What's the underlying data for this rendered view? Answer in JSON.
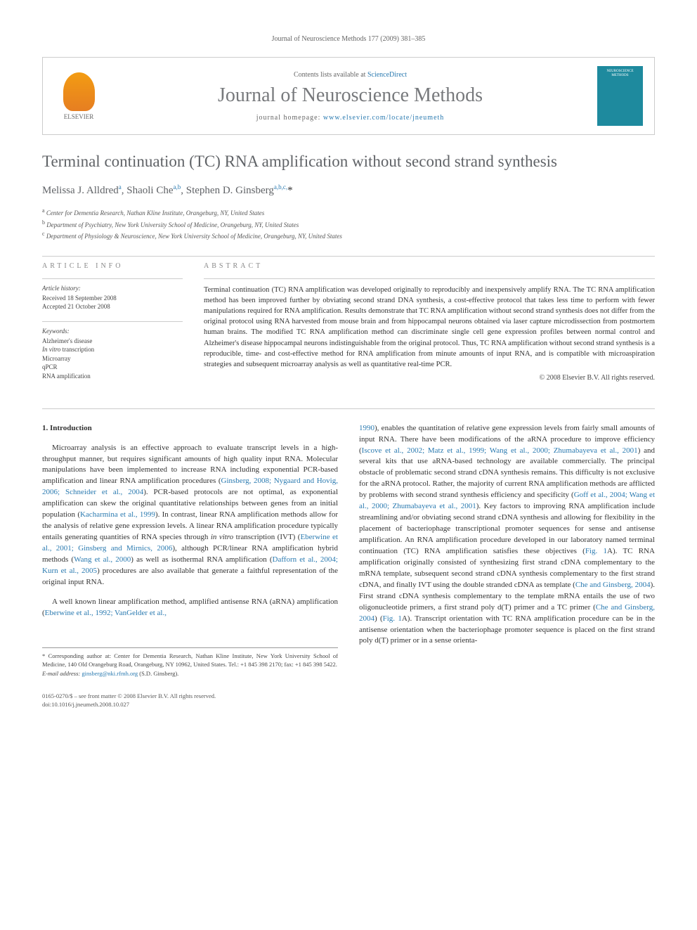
{
  "running_header": "Journal of Neuroscience Methods 177 (2009) 381–385",
  "masthead": {
    "publisher_name": "ELSEVIER",
    "contents_prefix": "Contents lists available at ",
    "contents_link": "ScienceDirect",
    "journal_name": "Journal of Neuroscience Methods",
    "homepage_prefix": "journal homepage: ",
    "homepage_url": "www.elsevier.com/locate/jneumeth",
    "cover_title1": "NEUROSCIENCE",
    "cover_title2": "METHODS"
  },
  "article": {
    "title": "Terminal continuation (TC) RNA amplification without second strand synthesis",
    "authors_html": "Melissa J. Alldred<sup>a</sup>, Shaoli Che<sup>a,b</sup>, Stephen D. Ginsberg<sup>a,b,c,</sup><span class='ast'>*</span>",
    "affiliations": [
      "Center for Dementia Research, Nathan Kline Institute, Orangeburg, NY, United States",
      "Department of Psychiatry, New York University School of Medicine, Orangeburg, NY, United States",
      "Department of Physiology & Neuroscience, New York University School of Medicine, Orangeburg, NY, United States"
    ],
    "aff_markers": [
      "a",
      "b",
      "c"
    ]
  },
  "info": {
    "label": "ARTICLE INFO",
    "history_label": "Article history:",
    "received": "Received 18 September 2008",
    "accepted": "Accepted 21 October 2008",
    "keywords_label": "Keywords:",
    "keywords": [
      "Alzheimer's disease",
      "In vitro transcription",
      "Microarray",
      "qPCR",
      "RNA amplification"
    ]
  },
  "abstract": {
    "label": "ABSTRACT",
    "text": "Terminal continuation (TC) RNA amplification was developed originally to reproducibly and inexpensively amplify RNA. The TC RNA amplification method has been improved further by obviating second strand DNA synthesis, a cost-effective protocol that takes less time to perform with fewer manipulations required for RNA amplification. Results demonstrate that TC RNA amplification without second strand synthesis does not differ from the original protocol using RNA harvested from mouse brain and from hippocampal neurons obtained via laser capture microdissection from postmortem human brains. The modified TC RNA amplification method can discriminate single cell gene expression profiles between normal control and Alzheimer's disease hippocampal neurons indistinguishable from the original protocol. Thus, TC RNA amplification without second strand synthesis is a reproducible, time- and cost-effective method for RNA amplification from minute amounts of input RNA, and is compatible with microaspiration strategies and subsequent microarray analysis as well as quantitative real-time PCR.",
    "copyright": "© 2008 Elsevier B.V. All rights reserved."
  },
  "body": {
    "heading": "1. Introduction",
    "left_paragraphs": [
      "Microarray analysis is an effective approach to evaluate transcript levels in a high-throughput manner, but requires significant amounts of high quality input RNA. Molecular manipulations have been implemented to increase RNA including exponential PCR-based amplification and linear RNA amplification procedures (<span class='ref-link'>Ginsberg, 2008; Nygaard and Hovig, 2006; Schneider et al., 2004</span>). PCR-based protocols are not optimal, as exponential amplification can skew the original quantitative relationships between genes from an initial population (<span class='ref-link'>Kacharmina et al., 1999</span>). In contrast, linear RNA amplification methods allow for the analysis of relative gene expression levels. A linear RNA amplification procedure typically entails generating quantities of RNA species through <i>in vitro</i> transcription (IVT) (<span class='ref-link'>Eberwine et al., 2001; Ginsberg and Mirnics, 2006</span>), although PCR/linear RNA amplification hybrid methods (<span class='ref-link'>Wang et al., 2000</span>) as well as isothermal RNA amplification (<span class='ref-link'>Dafforn et al., 2004; Kurn et al., 2005</span>) procedures are also available that generate a faithful representation of the original input RNA.",
      "A well known linear amplification method, amplified antisense RNA (aRNA) amplification (<span class='ref-link'>Eberwine et al., 1992; VanGelder et al.,</span>"
    ],
    "right_paragraph": "<span class='ref-link'>1990</span>), enables the quantitation of relative gene expression levels from fairly small amounts of input RNA. There have been modifications of the aRNA procedure to improve efficiency (<span class='ref-link'>Iscove et al., 2002; Matz et al., 1999; Wang et al., 2000; Zhumabayeva et al., 2001</span>) and several kits that use aRNA-based technology are available commercially. The principal obstacle of problematic second strand cDNA synthesis remains. This difficulty is not exclusive for the aRNA protocol. Rather, the majority of current RNA amplification methods are afflicted by problems with second strand synthesis efficiency and specificity (<span class='ref-link'>Goff et al., 2004; Wang et al., 2000; Zhumabayeva et al., 2001</span>). Key factors to improving RNA amplification include streamlining and/or obviating second strand cDNA synthesis and allowing for flexibility in the placement of bacteriophage transcriptional promoter sequences for sense and antisense amplification. An RNA amplification procedure developed in our laboratory named terminal continuation (TC) RNA amplification satisfies these objectives (<span class='ref-link'>Fig. 1</span>A). TC RNA amplification originally consisted of synthesizing first strand cDNA complementary to the mRNA template, subsequent second strand cDNA synthesis complementary to the first strand cDNA, and finally IVT using the double stranded cDNA as template (<span class='ref-link'>Che and Ginsberg, 2004</span>). First strand cDNA synthesis complementary to the template mRNA entails the use of two oligonucleotide primers, a first strand poly d(T) primer and a TC primer (<span class='ref-link'>Che and Ginsberg, 2004</span>) (<span class='ref-link'>Fig. 1</span>A). Transcript orientation with TC RNA amplification procedure can be in the antisense orientation when the bacteriophage promoter sequence is placed on the first strand poly d(T) primer or in a sense orienta-"
  },
  "footnotes": {
    "corr_label": "* Corresponding author at:",
    "corr_text": "Center for Dementia Research, Nathan Kline Institute, New York University School of Medicine, 140 Old Orangeburg Road, Orangeburg, NY 10962, United States. Tel.: +1 845 398 2170; fax: +1 845 398 5422.",
    "email_label": "E-mail address:",
    "email_value": "ginsberg@nki.rfmh.org",
    "email_name": "(S.D. Ginsberg)."
  },
  "footer": {
    "issn": "0165-0270/$ – see front matter © 2008 Elsevier B.V. All rights reserved.",
    "doi": "doi:10.1016/j.jneumeth.2008.10.027"
  },
  "colors": {
    "link": "#2a7ab0",
    "title_gray": "#606367",
    "text": "#333333",
    "muted": "#666666",
    "border": "#cccccc",
    "cover_bg": "#1e8a9e",
    "logo_top": "#f39c12",
    "logo_bottom": "#e67e22"
  }
}
